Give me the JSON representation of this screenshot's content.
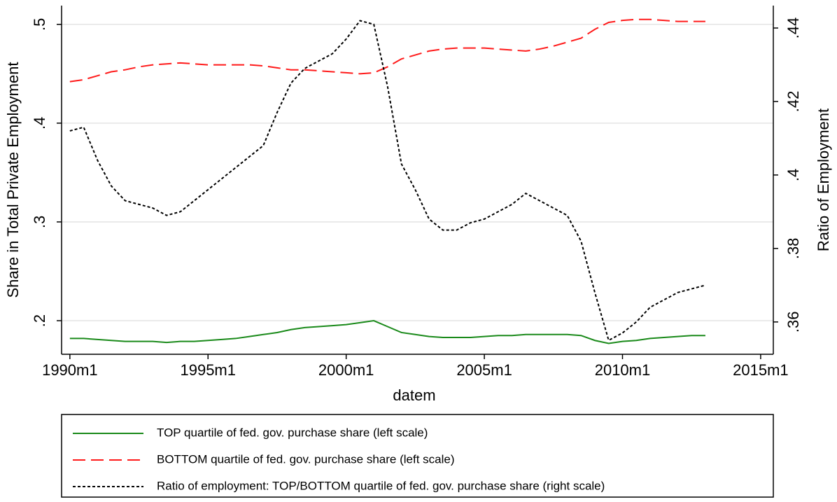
{
  "chart_data": {
    "type": "line",
    "xlabel": "datem",
    "ylabel": "Share in Total Private Employment",
    "y2label": "Ratio of Employment",
    "x": [
      360,
      366,
      372,
      378,
      384,
      390,
      396,
      402,
      408,
      414,
      420,
      426,
      432,
      438,
      444,
      450,
      456,
      462,
      468,
      474,
      480,
      486,
      492,
      498,
      504,
      510,
      516,
      522,
      528,
      534,
      540,
      546,
      552,
      558,
      564,
      570,
      576,
      582,
      588,
      594,
      600,
      606,
      612,
      618,
      624,
      630,
      636
    ],
    "series": [
      {
        "name": "TOP quartile of fed. gov. purchase share (left scale)",
        "color": "#1a8a1a",
        "dash": "solid",
        "values": [
          0.182,
          0.182,
          0.181,
          0.18,
          0.179,
          0.179,
          0.179,
          0.178,
          0.179,
          0.179,
          0.18,
          0.181,
          0.182,
          0.184,
          0.186,
          0.188,
          0.191,
          0.193,
          0.194,
          0.195,
          0.196,
          0.198,
          0.2,
          0.194,
          0.188,
          0.186,
          0.184,
          0.183,
          0.183,
          0.183,
          0.184,
          0.185,
          0.185,
          0.186,
          0.186,
          0.186,
          0.186,
          0.185,
          0.18,
          0.177,
          0.179,
          0.18,
          0.182,
          0.183,
          0.184,
          0.185,
          0.185
        ]
      },
      {
        "name": "BOTTOM quartile of fed. gov. purchase share (left scale)",
        "color": "#ff1a1a",
        "dash": "long",
        "values": [
          0.442,
          0.444,
          0.448,
          0.452,
          0.454,
          0.457,
          0.459,
          0.46,
          0.461,
          0.46,
          0.459,
          0.459,
          0.459,
          0.459,
          0.458,
          0.456,
          0.454,
          0.454,
          0.453,
          0.452,
          0.451,
          0.45,
          0.451,
          0.457,
          0.465,
          0.469,
          0.473,
          0.475,
          0.476,
          0.476,
          0.476,
          0.475,
          0.474,
          0.473,
          0.475,
          0.478,
          0.482,
          0.486,
          0.495,
          0.502,
          0.504,
          0.505,
          0.505,
          0.504,
          0.503,
          0.503,
          0.503
        ]
      },
      {
        "name": "Ratio of employment: TOP/BOTTOM quartile of fed. gov. purchase share (right scale)",
        "color": "#000000",
        "dash": "short",
        "axis": "y2",
        "values": [
          0.412,
          0.413,
          0.404,
          0.397,
          0.393,
          0.392,
          0.391,
          0.389,
          0.39,
          0.393,
          0.396,
          0.399,
          0.402,
          0.405,
          0.408,
          0.417,
          0.425,
          0.429,
          0.431,
          0.433,
          0.437,
          0.442,
          0.441,
          0.424,
          0.403,
          0.396,
          0.388,
          0.385,
          0.385,
          0.387,
          0.388,
          0.39,
          0.392,
          0.395,
          0.393,
          0.391,
          0.389,
          0.382,
          0.368,
          0.355,
          0.357,
          0.36,
          0.364,
          0.366,
          0.368,
          0.369,
          0.37
        ]
      }
    ],
    "xlim": [
      356.4,
      665.5
    ],
    "xticks": [
      {
        "value": 360,
        "label": "1990m1"
      },
      {
        "value": 420,
        "label": "1995m1"
      },
      {
        "value": 480,
        "label": "2000m1"
      },
      {
        "value": 540,
        "label": "2005m1"
      },
      {
        "value": 600,
        "label": "2010m1"
      },
      {
        "value": 660,
        "label": "2015m1"
      }
    ],
    "ylim": [
      0.166,
      0.519
    ],
    "yticks": [
      {
        "value": 0.2,
        "label": ".2"
      },
      {
        "value": 0.3,
        "label": ".3"
      },
      {
        "value": 0.4,
        "label": ".4"
      },
      {
        "value": 0.5,
        "label": ".5"
      }
    ],
    "y2lim": [
      0.3512,
      0.4461
    ],
    "y2ticks": [
      {
        "value": 0.36,
        "label": ".36"
      },
      {
        "value": 0.38,
        "label": ".38"
      },
      {
        "value": 0.4,
        "label": ".4"
      },
      {
        "value": 0.42,
        "label": ".42"
      },
      {
        "value": 0.44,
        "label": ".44"
      }
    ],
    "grid": true,
    "legend": "bottom"
  }
}
